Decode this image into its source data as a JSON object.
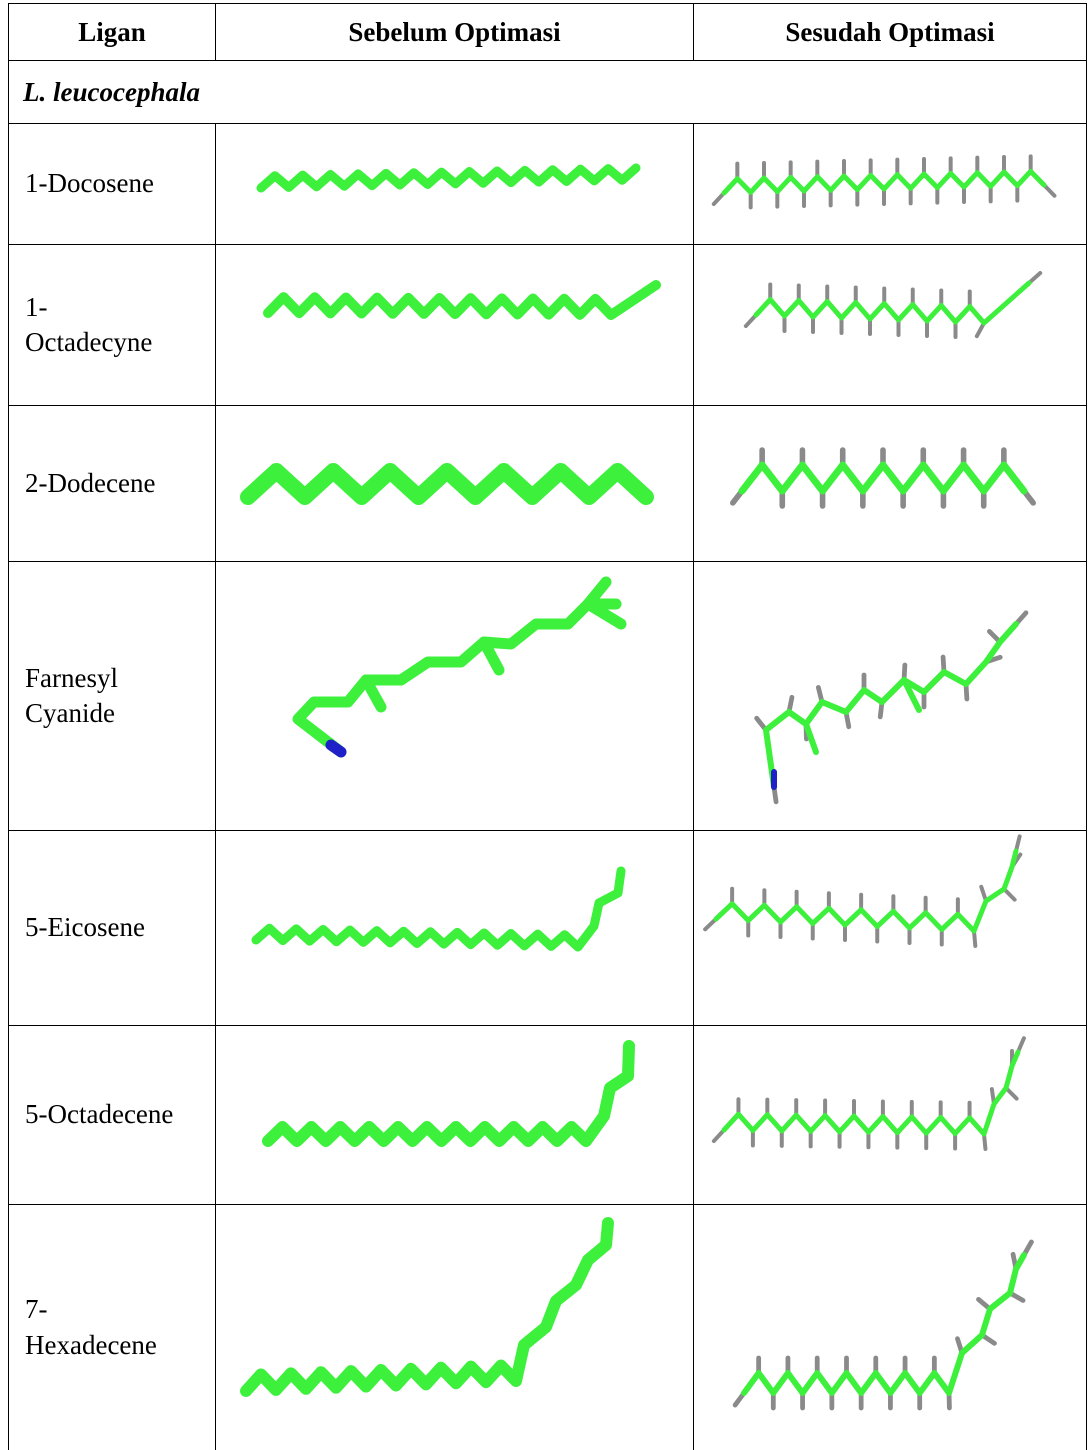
{
  "table": {
    "header": [
      "Ligan",
      "Sebelum Optimasi",
      "Sesudah Optimasi"
    ],
    "section": "L.  leucocephala",
    "rows": [
      "1-Docosene",
      "1-\nOctadecyne",
      "2-Dodecene",
      "Farnesyl\nCyanide",
      "5-Eicosene",
      "5-Octadecene",
      "7-\nHexadecene"
    ]
  }
}
